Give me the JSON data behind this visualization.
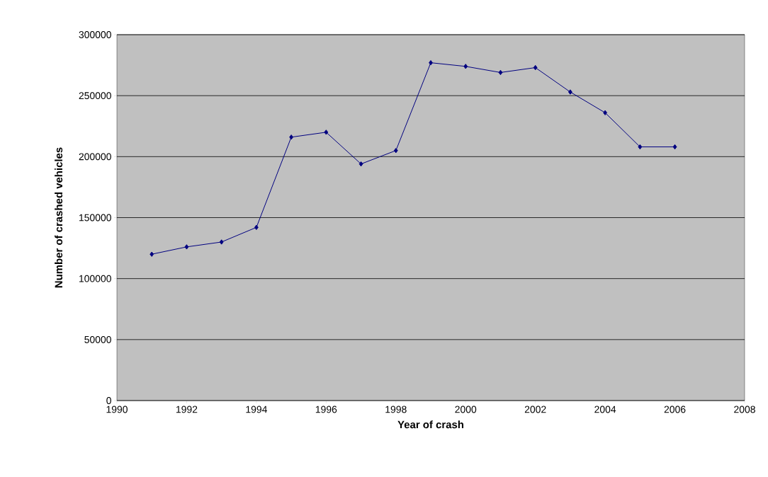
{
  "chart_data": {
    "type": "line",
    "xlabel": "Year of crash",
    "ylabel": "Number of crashed vehicles",
    "x": [
      1991,
      1992,
      1993,
      1994,
      1995,
      1996,
      1997,
      1998,
      1999,
      2000,
      2001,
      2002,
      2003,
      2004,
      2005,
      2006
    ],
    "values": [
      120000,
      126000,
      130000,
      142000,
      216000,
      220000,
      194000,
      205000,
      277000,
      274000,
      269000,
      273000,
      253000,
      236000,
      208000,
      208000
    ],
    "color": "#000080",
    "xlim": [
      1990,
      2008
    ],
    "xticks": [
      1990,
      1992,
      1994,
      1996,
      1998,
      2000,
      2002,
      2004,
      2006,
      2008
    ],
    "ylim": [
      0,
      300000
    ],
    "yticks": [
      0,
      50000,
      100000,
      150000,
      200000,
      250000,
      300000
    ],
    "grid": "y",
    "marker": "diamond",
    "line_style": "solid"
  }
}
